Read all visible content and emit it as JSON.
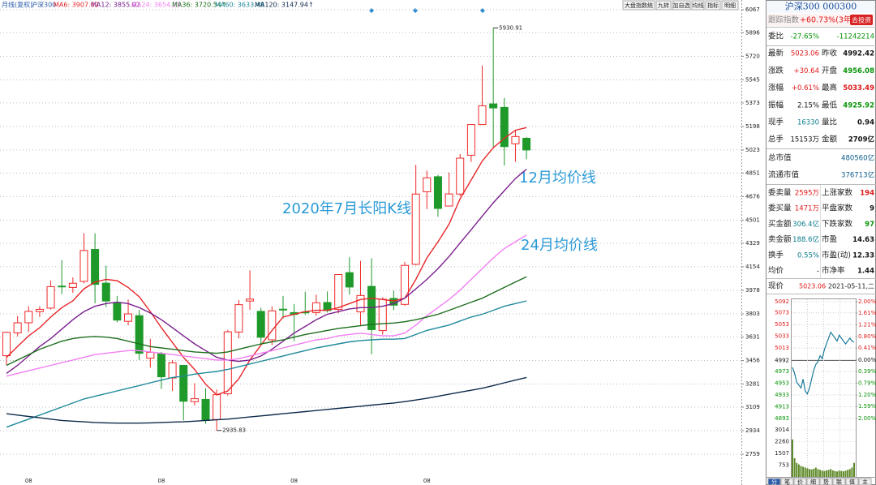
{
  "toolbar": [
    "大盘指数统",
    "九转",
    "加自选",
    "均线",
    "指标",
    "明细"
  ],
  "chart_data": {
    "type": "candlestick",
    "period": "月线(复权)",
    "title": "沪深300",
    "categories": [
      null,
      null,
      "08",
      null,
      null,
      null,
      null,
      null,
      null,
      null,
      null,
      null,
      null,
      null,
      "08",
      null,
      null,
      null,
      null,
      null,
      null,
      null,
      null,
      null,
      null,
      null,
      "08",
      null,
      null,
      null,
      null,
      null,
      null,
      null,
      null,
      null,
      null,
      null,
      "08",
      null,
      null,
      null,
      null,
      null,
      null,
      null,
      null,
      null
    ],
    "open": [
      3492,
      3662,
      3737,
      3820,
      3846,
      4010,
      4000,
      4045,
      4283,
      4032,
      3888,
      3748,
      3790,
      3474,
      3506,
      3326,
      3420,
      3150,
      3167,
      3017,
      3209,
      3668,
      3899,
      3822,
      3610,
      3838,
      3813,
      3817,
      3813,
      3888,
      3836,
      4110,
      3818,
      4008,
      3679,
      3918,
      3874,
      4172,
      4712,
      4824,
      4606,
      4695,
      4984,
      5212,
      5366,
      5340,
      5069,
      5110
    ],
    "high": [
      3671,
      3788,
      3860,
      3860,
      4052,
      4203,
      4074,
      4404,
      4403,
      4162,
      3937,
      3910,
      3832,
      3617,
      3520,
      3460,
      3424,
      3287,
      3250,
      3240,
      3684,
      3906,
      4127,
      3848,
      3860,
      3937,
      3877,
      3968,
      3946,
      3970,
      4099,
      4225,
      4198,
      4217,
      3927,
      3976,
      4191,
      4912,
      4869,
      4837,
      4856,
      4993,
      5212,
      5651,
      5930.91,
      5410,
      5170,
      5120
    ],
    "low": [
      3423,
      3636,
      3667,
      3780,
      3836,
      3950,
      3960,
      4030,
      3882,
      3854,
      3741,
      3718,
      3460,
      3403,
      3245,
      3229,
      3010,
      3122,
      2986,
      2935.83,
      3196,
      3621,
      3833,
      3575,
      3570,
      3770,
      3600,
      3795,
      3790,
      3813,
      3808,
      3946,
      3714,
      3503,
      3648,
      3832,
      3864,
      4164,
      4583,
      4526,
      4603,
      4680,
      4934,
      5212,
      5045,
      4907,
      4935,
      4954
    ],
    "close": [
      3666,
      3737,
      3822,
      3837,
      4006,
      4006,
      4031,
      4275,
      4023,
      3899,
      3757,
      3803,
      3510,
      3517,
      3335,
      3439,
      3153,
      3172,
      3011,
      3202,
      3670,
      3872,
      3913,
      3629,
      3826,
      3835,
      3799,
      3814,
      3886,
      3828,
      4096,
      4003,
      3940,
      3686,
      3912,
      3868,
      4164,
      4695,
      4816,
      4588,
      4696,
      4962,
      5212,
      5352,
      5336,
      5048,
      5123,
      5023
    ],
    "up_color": "#f02828",
    "down_color": "#1f9a2a",
    "ylim": [
      2578,
      6109
    ],
    "yticks": [
      6067,
      5896,
      5720,
      5545,
      5373,
      5198,
      5023,
      4851,
      4676,
      4501,
      4329,
      4154,
      3978,
      3803,
      3631,
      3456,
      3281,
      3109,
      2934,
      2759
    ],
    "grid": true,
    "ma_lines": [
      {
        "legend": "MA6: 3907.02",
        "color": "#e8262a",
        "values": [
          3480,
          3560,
          3640,
          3700,
          3780,
          3850,
          3900,
          3990,
          4040,
          4060,
          4050,
          4000,
          3930,
          3820,
          3700,
          3590,
          3480,
          3390,
          3280,
          3200,
          3230,
          3320,
          3460,
          3570,
          3680,
          3780,
          3800,
          3820,
          3830,
          3830,
          3850,
          3880,
          3910,
          3920,
          3910,
          3900,
          3920,
          4060,
          4220,
          4340,
          4470,
          4660,
          4800,
          4940,
          5040,
          5110,
          5170,
          5190
        ]
      },
      {
        "legend": "MA12: 3855.02",
        "color": "#7a1f8c",
        "values": [
          3360,
          3420,
          3490,
          3560,
          3620,
          3690,
          3760,
          3820,
          3860,
          3880,
          3890,
          3880,
          3850,
          3810,
          3760,
          3700,
          3640,
          3580,
          3530,
          3480,
          3460,
          3450,
          3460,
          3490,
          3540,
          3600,
          3660,
          3710,
          3760,
          3800,
          3820,
          3840,
          3850,
          3850,
          3860,
          3880,
          3920,
          3990,
          4060,
          4140,
          4230,
          4330,
          4430,
          4530,
          4630,
          4720,
          4810,
          4880
        ]
      },
      {
        "legend": "MA24: 3654.25",
        "color": "#f27ff2",
        "values": [
          3340,
          3360,
          3380,
          3400,
          3420,
          3440,
          3460,
          3480,
          3500,
          3510,
          3520,
          3530,
          3530,
          3520,
          3510,
          3500,
          3490,
          3480,
          3470,
          3460,
          3460,
          3470,
          3490,
          3510,
          3530,
          3550,
          3570,
          3590,
          3610,
          3620,
          3640,
          3650,
          3660,
          3650,
          3640,
          3640,
          3660,
          3720,
          3790,
          3850,
          3910,
          3980,
          4060,
          4140,
          4220,
          4290,
          4340,
          4390
        ]
      },
      {
        "legend": "MA36: 3720.54↑",
        "color": "#1d6e1d",
        "values": [
          3420,
          3460,
          3500,
          3540,
          3570,
          3600,
          3620,
          3630,
          3635,
          3630,
          3620,
          3600,
          3580,
          3560,
          3550,
          3540,
          3530,
          3520,
          3515,
          3510,
          3520,
          3540,
          3560,
          3580,
          3595,
          3610,
          3630,
          3650,
          3665,
          3680,
          3695,
          3705,
          3715,
          3725,
          3730,
          3735,
          3745,
          3760,
          3780,
          3800,
          3830,
          3860,
          3890,
          3920,
          3960,
          4000,
          4040,
          4080
        ]
      },
      {
        "legend": "MA60: 3633.48",
        "color": "#1e8a9a",
        "values": [
          2960,
          2990,
          3020,
          3050,
          3080,
          3110,
          3140,
          3170,
          3190,
          3210,
          3230,
          3250,
          3270,
          3290,
          3310,
          3330,
          3340,
          3355,
          3365,
          3375,
          3390,
          3410,
          3430,
          3450,
          3470,
          3490,
          3510,
          3530,
          3550,
          3565,
          3580,
          3595,
          3605,
          3610,
          3615,
          3615,
          3620,
          3650,
          3680,
          3700,
          3720,
          3750,
          3780,
          3800,
          3830,
          3860,
          3880,
          3900
        ]
      },
      {
        "legend": "MA120: 3147.94↑",
        "color": "#0d2a4a",
        "values": [
          3060,
          3050,
          3040,
          3030,
          3020,
          3010,
          3005,
          3000,
          2995,
          2992,
          2990,
          2990,
          2990,
          2992,
          2995,
          2998,
          3000,
          3005,
          3010,
          3015,
          3020,
          3028,
          3036,
          3044,
          3052,
          3060,
          3068,
          3076,
          3084,
          3092,
          3100,
          3108,
          3116,
          3124,
          3132,
          3140,
          3150,
          3162,
          3175,
          3190,
          3205,
          3220,
          3235,
          3250,
          3270,
          3290,
          3310,
          3330
        ]
      }
    ],
    "annotations": [
      "2020年7月长阳K线",
      "12月均价线",
      "24月均价线"
    ]
  },
  "panel": {
    "title": "沪深300 000300",
    "track": {
      "label": "跟踪指数",
      "value": "+60.73%(3年)",
      "button": "去投资"
    },
    "quotes": [
      {
        "label": "委比",
        "value": "-27.65%",
        "color": "#079307",
        "value2": "-11242214",
        "color2": "#079307"
      },
      {
        "label": "最新",
        "value": "5023.06",
        "color": "#e01818",
        "label2": "昨收",
        "value2": "4992.42",
        "color2": "#111111"
      },
      {
        "label": "涨跌",
        "value": "+30.64",
        "color": "#e01818",
        "label2": "开盘",
        "value2": "4956.08",
        "color2": "#079307"
      },
      {
        "label": "涨幅",
        "value": "+0.61%",
        "color": "#e01818",
        "label2": "最高",
        "value2": "5033.49",
        "color2": "#e01818"
      },
      {
        "label": "振幅",
        "value": "2.15%",
        "color": "#111111",
        "label2": "最低",
        "value2": "4925.92",
        "color2": "#079307"
      },
      {
        "label": "现手",
        "value": "16330",
        "color": "#0a7a8a",
        "label2": "量比",
        "value2": "0.94",
        "color2": "#111111"
      },
      {
        "label": "总手",
        "value": "15153万",
        "color": "#111111",
        "label2": "金额",
        "value2": "2709亿",
        "color2": "#111111"
      }
    ],
    "market_value": [
      {
        "label": "总市值",
        "value": "480560亿"
      },
      {
        "label": "流通市值",
        "value": "376713亿"
      }
    ],
    "depth": [
      {
        "label": "委卖量",
        "value": "2595万",
        "color": "#e01818",
        "label2": "上涨家数",
        "value2": "194",
        "color2": "#e01818"
      },
      {
        "label": "委买量",
        "value": "1471万",
        "color": "#e01818",
        "label2": "平盘家数",
        "value2": "9",
        "color2": "#111111"
      },
      {
        "label": "买金额",
        "value": "306.4亿",
        "color": "#0a7a8a",
        "label2": "下跌家数",
        "value2": "97",
        "color2": "#079307"
      },
      {
        "label": "卖金额",
        "value": "188.6亿",
        "color": "#0a7a8a",
        "label2": "市盈",
        "value2": "14.63",
        "color2": "#111111"
      },
      {
        "label": "换手",
        "value": "0.55%",
        "color": "#0a7a8a",
        "label2": "市盈(动)",
        "value2": "12.33",
        "color2": "#111111"
      },
      {
        "label": "均价",
        "value": "-",
        "color": "#111111",
        "label2": "市净率",
        "value2": "1.44",
        "color2": "#111111"
      }
    ],
    "intraday": {
      "type": "line",
      "label": "现价",
      "price": "5023.06",
      "date": "2021-05-11,二",
      "color": "#1a7a9a",
      "values": [
        4980,
        4970,
        4955,
        4950,
        4945,
        4960,
        4940,
        4935,
        4945,
        4960,
        4975,
        4985,
        4990,
        5000,
        4995,
        5010,
        5020,
        5030,
        5040,
        5035,
        5030,
        5025,
        5035,
        5030,
        5025,
        5020,
        5025,
        5030,
        5025,
        5023
      ],
      "ylim": [
        4893,
        5092
      ],
      "yticks": [
        5092,
        5073,
        5053,
        5033,
        5013,
        4992,
        4973,
        4953,
        4933,
        4913,
        4893
      ],
      "y2lim": [
        -2,
        2
      ],
      "y2ticks": [
        {
          "value": 2,
          "label": "2.00%"
        },
        {
          "value": 1.61,
          "label": "1.61%"
        },
        {
          "value": 1.21,
          "label": "1.21%"
        },
        {
          "value": 0.8,
          "label": "0.80%"
        },
        {
          "value": 0.41,
          "label": "0.41%"
        },
        {
          "value": 0,
          "label": "0.00%"
        },
        {
          "value": -0.39,
          "label": "0.39%"
        },
        {
          "value": -0.79,
          "label": "0.79%"
        },
        {
          "value": -1.2,
          "label": "1.20%"
        },
        {
          "value": -1.59,
          "label": "1.59%"
        },
        {
          "value": -2,
          "label": "2.00%"
        }
      ],
      "volume": [
        2400,
        1200,
        900,
        800,
        700,
        650,
        600,
        550,
        500,
        480,
        520,
        600,
        500,
        450,
        400,
        380,
        420,
        450,
        500,
        420,
        380,
        350,
        400,
        380,
        360,
        400,
        450,
        500,
        600,
        900
      ],
      "volume_color": "#5f8a2a",
      "volume_lim": [
        0,
        3014
      ],
      "volume_ticks": [
        3014,
        2260,
        1507,
        753
      ]
    },
    "tabs": [
      "分",
      "笔",
      "价",
      "细",
      "势",
      "联",
      "值",
      "主"
    ]
  }
}
